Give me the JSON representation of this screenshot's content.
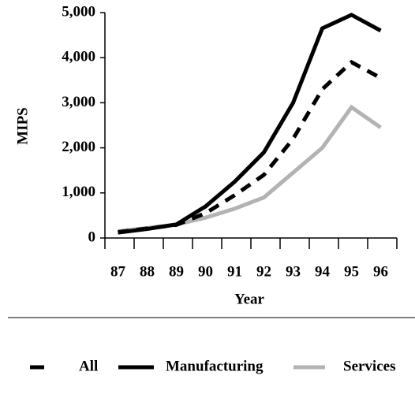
{
  "chart_data": {
    "type": "line",
    "categories": [
      "87",
      "88",
      "89",
      "90",
      "91",
      "92",
      "93",
      "94",
      "95",
      "96"
    ],
    "series": [
      {
        "name": "All",
        "color": "#000000",
        "dashed": true,
        "values": [
          130,
          210,
          290,
          550,
          950,
          1400,
          2200,
          3300,
          3900,
          3550
        ]
      },
      {
        "name": "Manufacturing",
        "color": "#000000",
        "dashed": false,
        "values": [
          120,
          200,
          300,
          700,
          1250,
          1900,
          3000,
          4650,
          4950,
          4600
        ]
      },
      {
        "name": "Services",
        "color": "#b3b3b3",
        "dashed": false,
        "values": [
          150,
          220,
          300,
          450,
          650,
          900,
          1450,
          2000,
          2900,
          2450
        ]
      }
    ],
    "x_label": "Year",
    "y_label": "MIPS",
    "ylim": [
      0,
      5000
    ],
    "yticks": [
      0,
      {
        "value": 1000,
        "label": "1,000"
      },
      {
        "value": 2000,
        "label": "2,000"
      },
      {
        "value": 3000,
        "label": "3,000"
      },
      {
        "value": 4000,
        "label": "4,000"
      },
      {
        "value": 5000,
        "label": "5,000"
      }
    ],
    "grid": false,
    "legend": "bottom"
  }
}
